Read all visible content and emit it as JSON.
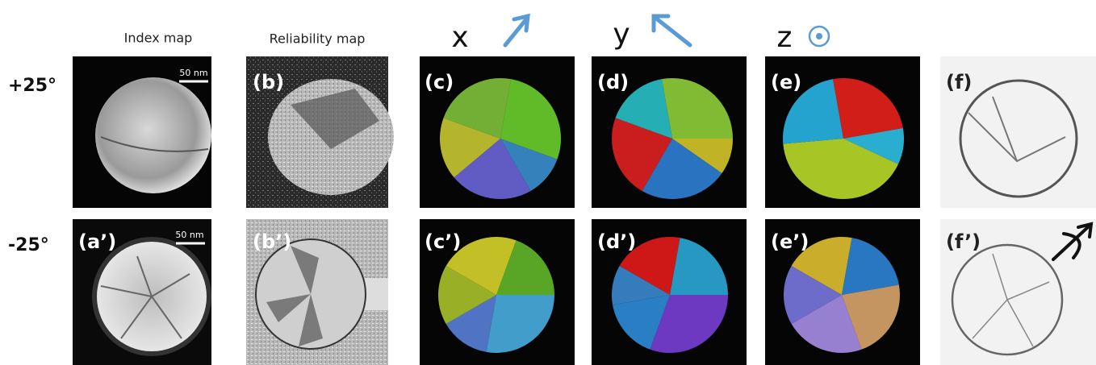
{
  "column_headers": [
    "Index map",
    "Reliability map"
  ],
  "axis_labels": [
    "x",
    "y",
    "z"
  ],
  "row_labels": [
    "+25°",
    "-25°"
  ],
  "panel_labels": [
    [
      "(b)",
      "(c)",
      "(d)",
      "(e)",
      "(f)"
    ],
    [
      "(a’)",
      "(b’)",
      "(c’)",
      "(d’)",
      "(e’)",
      "(f’)"
    ]
  ],
  "scale_bars": [
    "50 nm",
    "50 nm"
  ]
}
